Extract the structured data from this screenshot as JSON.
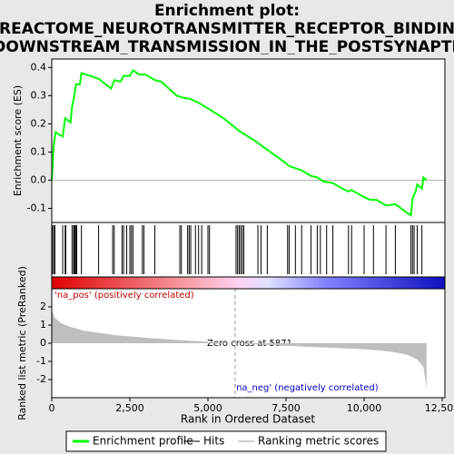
{
  "chart_data": [
    {
      "type": "line",
      "title": "Enrichment plot:",
      "subtitle": "REACTOME_NEUROTRANSMITTER_RECEPTOR_BINDIN",
      "subtitle2": "_DOWNSTREAM_TRANSMISSION_IN_THE_POSTSYNAPTIC",
      "y_label": "Enrichment score (ES)",
      "xlim": [
        0,
        12500
      ],
      "ylim": [
        -0.15,
        0.43
      ],
      "yticks": [
        -0.1,
        {
          "value": 0,
          "label": "0.0"
        },
        0.1,
        0.2,
        0.3,
        0.4
      ],
      "series": [
        {
          "name": "Enrichment profile",
          "color": "#00ff00",
          "x": [
            0,
            30,
            60,
            120,
            350,
            430,
            600,
            650,
            720,
            780,
            900,
            950,
            1100,
            1500,
            1900,
            2000,
            2200,
            2300,
            2500,
            2600,
            2800,
            3000,
            3300,
            3500,
            4000,
            4300,
            4400,
            4700,
            5000,
            5500,
            6000,
            6500,
            7000,
            7500,
            7600,
            8000,
            8300,
            8500,
            8700,
            9000,
            9300,
            9500,
            9600,
            10000,
            10200,
            10400,
            10700,
            11000,
            11300,
            11500,
            11550,
            11650,
            11700,
            11850,
            11900,
            12000
          ],
          "values": [
            0,
            0.06,
            0.12,
            0.17,
            0.155,
            0.22,
            0.205,
            0.26,
            0.3,
            0.34,
            0.34,
            0.38,
            0.375,
            0.36,
            0.325,
            0.355,
            0.35,
            0.37,
            0.37,
            0.39,
            0.375,
            0.375,
            0.355,
            0.35,
            0.3,
            0.29,
            0.29,
            0.275,
            0.255,
            0.22,
            0.175,
            0.14,
            0.1,
            0.06,
            0.05,
            0.035,
            0.015,
            0.01,
            -0.005,
            -0.01,
            -0.03,
            -0.04,
            -0.035,
            -0.06,
            -0.07,
            -0.07,
            -0.09,
            -0.085,
            -0.11,
            -0.125,
            -0.065,
            -0.04,
            -0.015,
            -0.03,
            0.01,
            0
          ]
        }
      ]
    },
    {
      "type": "rug",
      "xlim": [
        0,
        12500
      ],
      "series": [
        {
          "name": "Hits",
          "color": "#000000",
          "x": [
            30,
            80,
            100,
            350,
            430,
            450,
            650,
            700,
            720,
            750,
            780,
            800,
            950,
            1500,
            1950,
            2000,
            2250,
            2300,
            2400,
            2500,
            2550,
            2600,
            2900,
            2950,
            3300,
            4100,
            4150,
            4350,
            4400,
            4450,
            4600,
            4700,
            4800,
            5000,
            5050,
            5900,
            5950,
            6000,
            6050,
            6100,
            6150,
            6600,
            6700,
            6900,
            7550,
            7600,
            7800,
            8000,
            8300,
            8500,
            8600,
            8800,
            9000,
            9500,
            9600,
            10000,
            10300,
            10700,
            11000,
            11500,
            11550,
            11600,
            11700,
            11850
          ]
        }
      ]
    },
    {
      "type": "area",
      "x_label": "Rank in Ordered Dataset",
      "y_label": "Ranked list metric (PreRanked)",
      "annotations": [
        "'na_pos' (positively correlated)",
        "Zero cross at 5871",
        "'na_neg' (negatively correlated)"
      ],
      "zero_cross": 5871,
      "xlim": [
        0,
        12500
      ],
      "xticks": [
        0,
        {
          "value": 2500,
          "label": "2,500"
        },
        {
          "value": 5000,
          "label": "5,000"
        },
        {
          "value": 7500,
          "label": "7,500"
        },
        {
          "value": 10000,
          "label": "10,000"
        },
        {
          "value": 12500,
          "label": "12,500"
        }
      ],
      "ylim": [
        -3,
        3
      ],
      "yticks": [
        -2,
        -1,
        0,
        1,
        2
      ],
      "series": [
        {
          "name": "Ranking metric scores",
          "color": "#bebebe",
          "x": [
            0,
            100,
            300,
            600,
            1000,
            2000,
            3000,
            4000,
            5000,
            5871,
            7000,
            8000,
            9000,
            10000,
            10500,
            11000,
            11400,
            11700,
            11900,
            12000
          ],
          "values": [
            1.8,
            1.4,
            1.1,
            0.9,
            0.7,
            0.45,
            0.3,
            0.18,
            0.08,
            0,
            -0.1,
            -0.18,
            -0.25,
            -0.33,
            -0.4,
            -0.5,
            -0.65,
            -0.9,
            -1.3,
            -2.5
          ]
        }
      ]
    }
  ]
}
